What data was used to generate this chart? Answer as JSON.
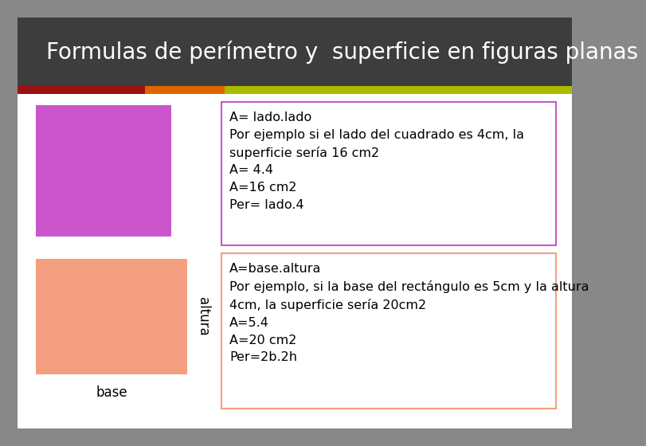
{
  "title": "Formulas de perímetro y  superficie en figuras planas",
  "title_bg": "#3d3d3d",
  "title_color": "#ffffff",
  "title_fontsize": 20,
  "bg_color": "#ffffff",
  "outer_bg": "#888888",
  "stripe1_color": "#991111",
  "stripe2_color": "#dd6600",
  "stripe3_color": "#aabb00",
  "stripe4_color": "#6aaa00",
  "square_color": "#cc55cc",
  "rect_color": "#f4a080",
  "box1_border": "#cc55cc",
  "box2_border": "#f4a080",
  "square_text": "A= lado.lado\nPor ejemplo si el lado del cuadrado es 4cm, la\nsuperficie sería 16 cm2\nA= 4.4\nA=16 cm2\nPer= lado.4",
  "rect_text": "A=base.altura\nPor ejemplo, si la base del rectángulo es 5cm y la altura\n4cm, la superficie sería 20cm2\nA=5.4\nA=20 cm2\nPer=2b.2h",
  "label_base": "base",
  "label_altura": "altura",
  "text_fontsize": 11.5
}
